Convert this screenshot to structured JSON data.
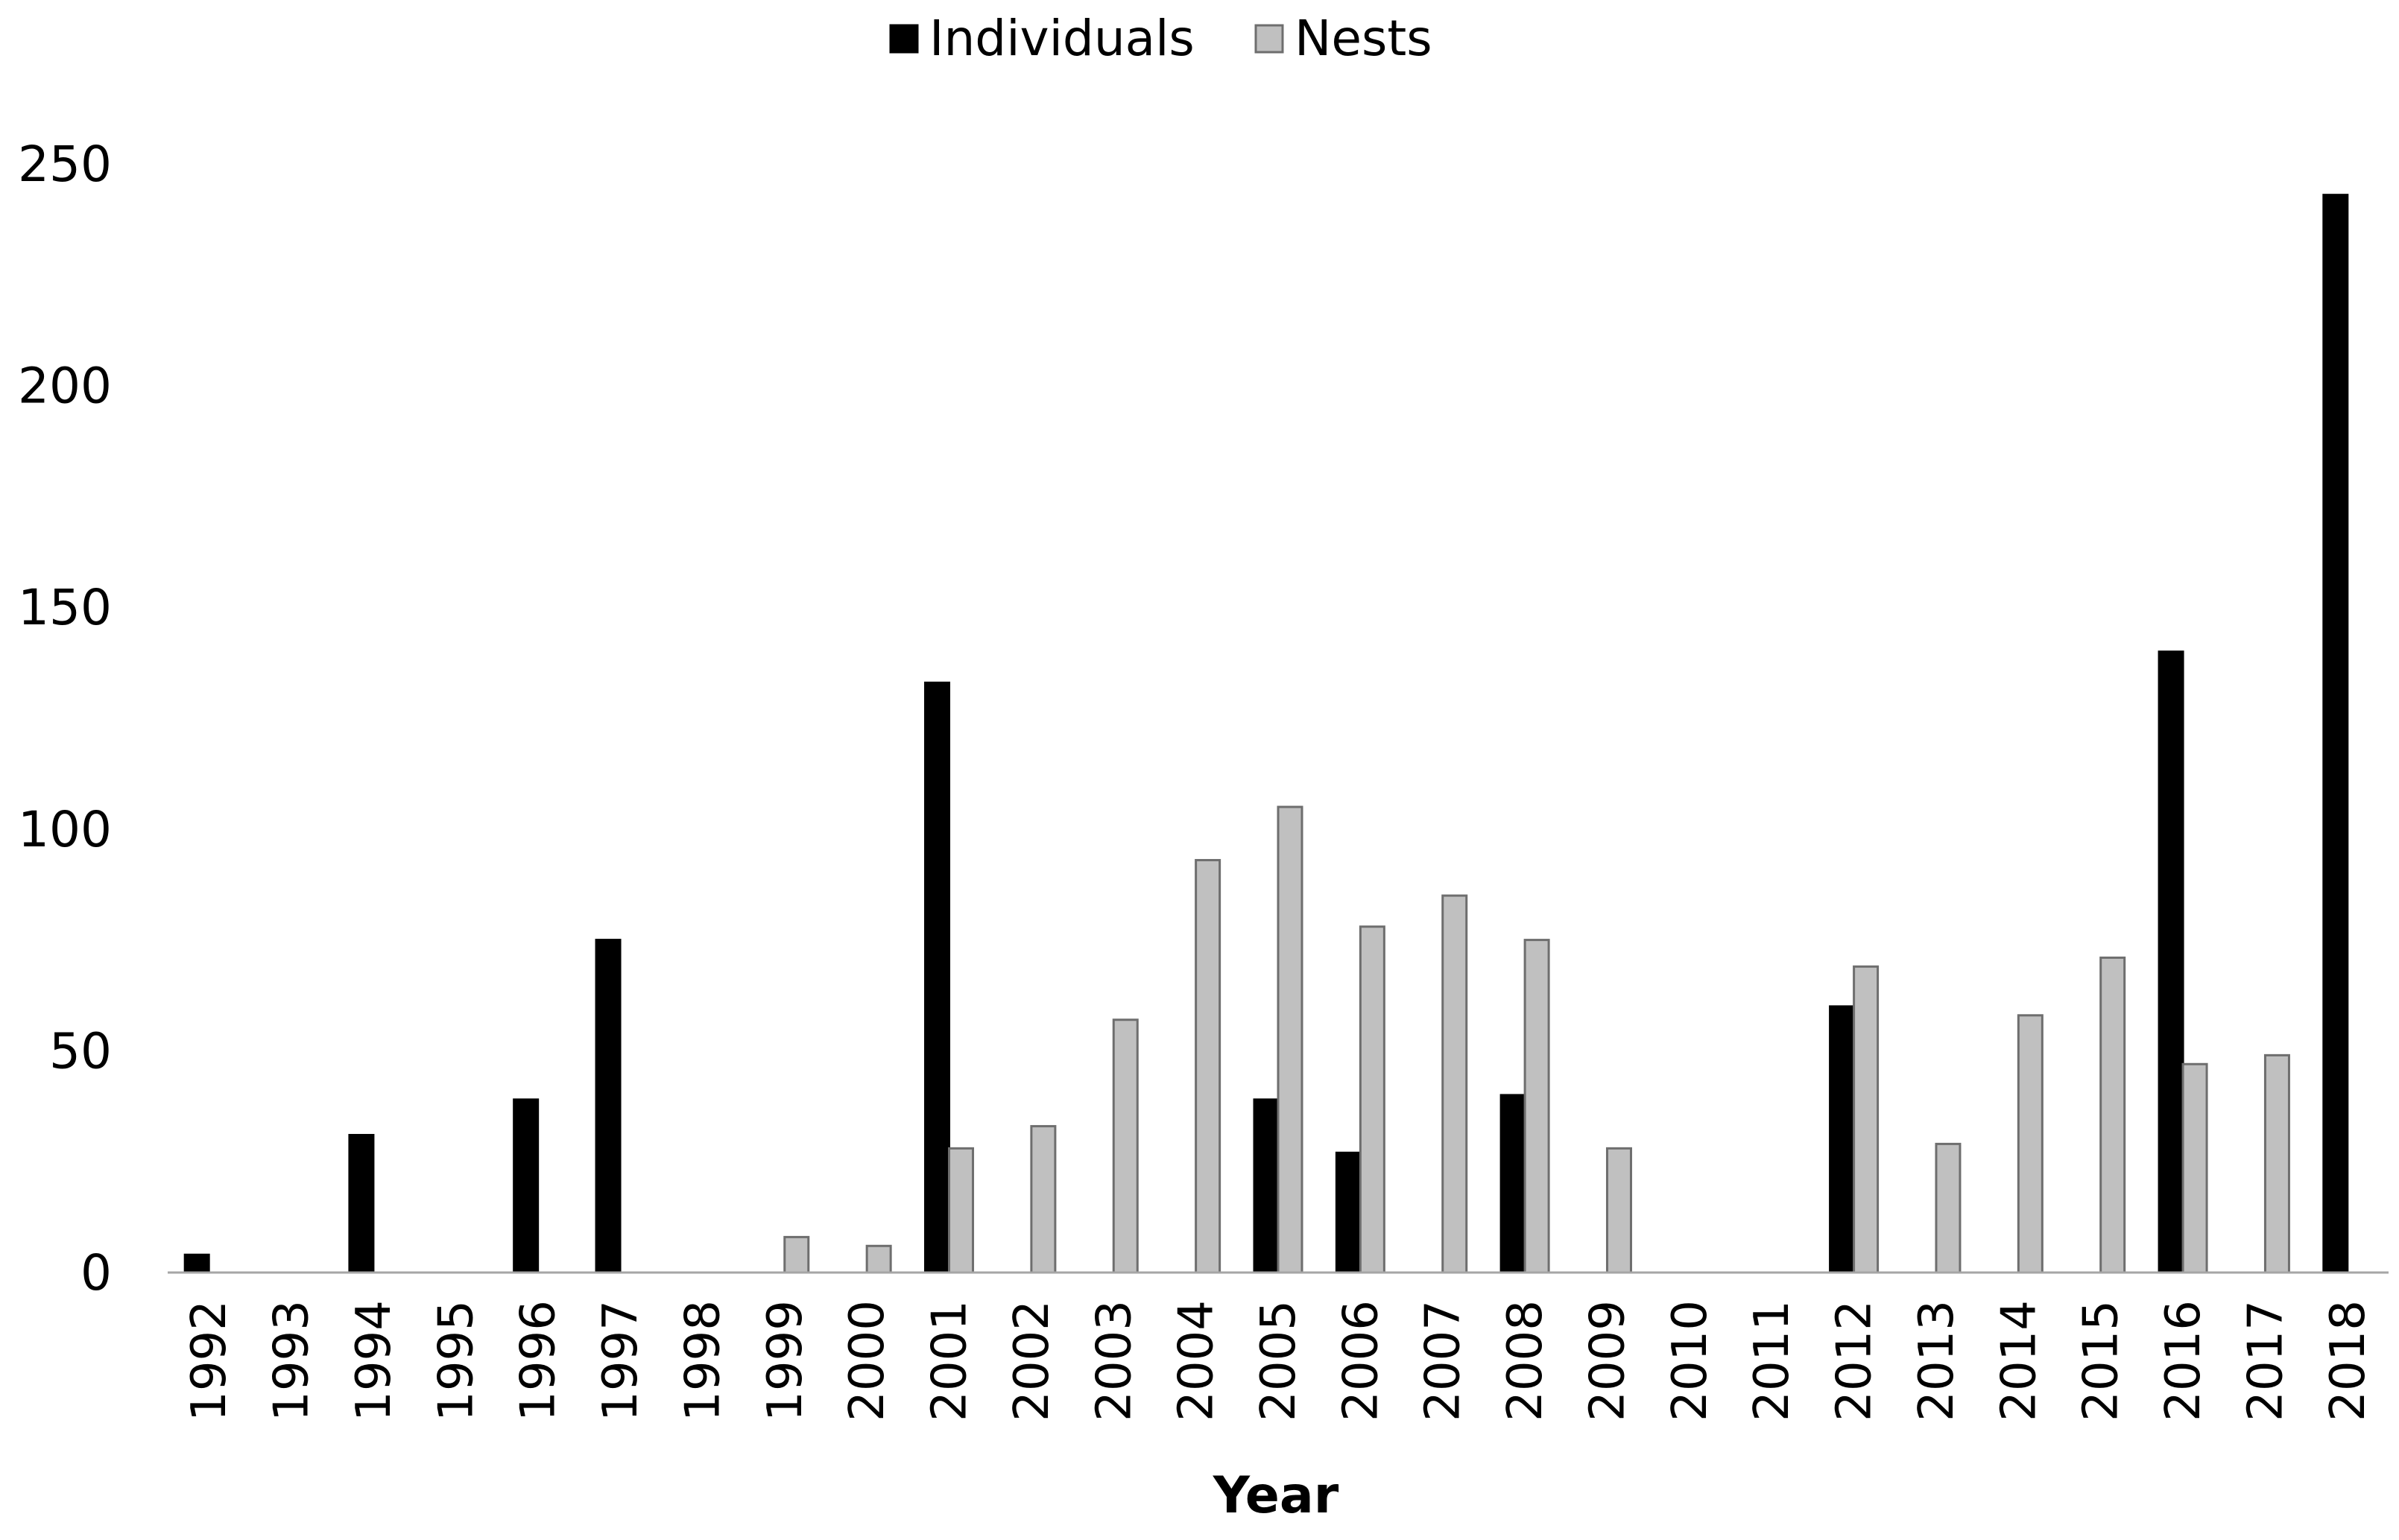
{
  "chart_data": {
    "type": "bar",
    "xlabel": "Year",
    "ylabel": "",
    "ylim": [
      0,
      250
    ],
    "yticks": [
      0,
      50,
      100,
      150,
      200,
      250
    ],
    "grid": false,
    "legend_position": "top-center",
    "categories": [
      "1992",
      "1993",
      "1994",
      "1995",
      "1996",
      "1997",
      "1998",
      "1999",
      "2000",
      "2001",
      "2002",
      "2003",
      "2004",
      "2005",
      "2006",
      "2007",
      "2008",
      "2009",
      "2010",
      "2011",
      "2012",
      "2013",
      "2014",
      "2015",
      "2016",
      "2017",
      "2018"
    ],
    "series": [
      {
        "name": "Individuals",
        "color": "#000000",
        "values": [
          4,
          0,
          31,
          0,
          39,
          75,
          0,
          0,
          0,
          133,
          0,
          0,
          0,
          39,
          27,
          0,
          40,
          0,
          0,
          0,
          60,
          0,
          0,
          0,
          140,
          0,
          243
        ]
      },
      {
        "name": "Nests",
        "color": "#c0c0c0",
        "values": [
          0,
          0,
          0,
          0,
          0,
          0,
          0,
          8,
          6,
          28,
          33,
          57,
          93,
          105,
          78,
          85,
          75,
          28,
          0,
          0,
          69,
          29,
          58,
          71,
          47,
          49,
          0
        ]
      }
    ]
  }
}
